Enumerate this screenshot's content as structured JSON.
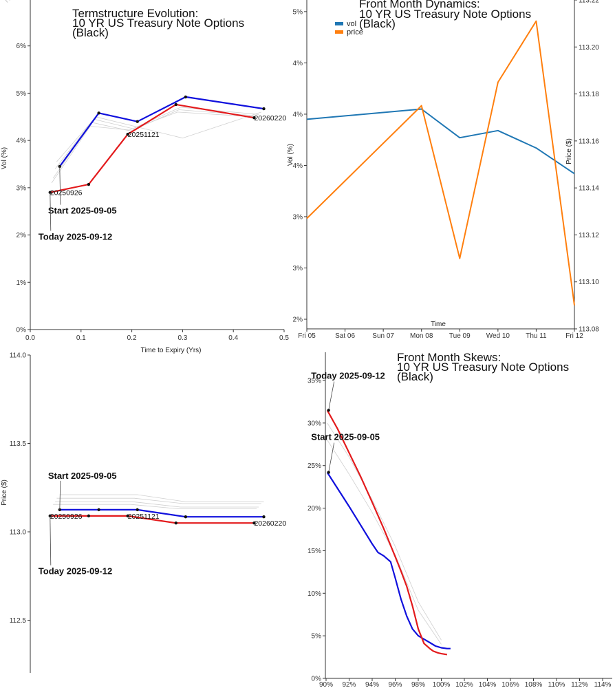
{
  "watermark": "Ter",
  "chart_data": [
    {
      "id": "termstructure",
      "type": "line",
      "title": [
        "Termstructure Evolution:",
        "10 YR US Treasury Note Options",
        "(Black)"
      ],
      "xlabel": "Time to Expiry (Yrs)",
      "ylabel": "Vol (%)",
      "xlim": [
        0,
        0.5
      ],
      "ylim": [
        0,
        7
      ],
      "xticks": [
        0.0,
        0.1,
        0.2,
        0.3,
        0.4,
        0.5
      ],
      "xtick_labels": [
        "0.0",
        "0.1",
        "0.2",
        "0.3",
        "0.4",
        "0.5"
      ],
      "yticks": [
        0,
        1,
        2,
        3,
        4,
        5,
        6
      ],
      "ytick_labels": [
        "0%",
        "1%",
        "2%",
        "3%",
        "4%",
        "5%",
        "6%"
      ],
      "series": [
        {
          "name": "Start 2025-09-05",
          "color": "#1010dd",
          "x": [
            0.058,
            0.135,
            0.211,
            0.306,
            0.46
          ],
          "y": [
            3.45,
            4.58,
            4.4,
            4.92,
            4.67
          ]
        },
        {
          "name": "Today 2025-09-12",
          "color": "#e31a1c",
          "x": [
            0.039,
            0.115,
            0.192,
            0.287,
            0.441
          ],
          "y": [
            2.9,
            3.07,
            4.13,
            4.76,
            4.48
          ]
        }
      ],
      "history": [
        {
          "x": [
            0.052,
            0.129,
            0.205,
            0.3,
            0.455
          ],
          "y": [
            3.55,
            4.5,
            4.3,
            4.05,
            4.6
          ]
        },
        {
          "x": [
            0.049,
            0.125,
            0.202,
            0.296,
            0.45
          ],
          "y": [
            3.4,
            4.45,
            4.25,
            4.7,
            4.55
          ]
        },
        {
          "x": [
            0.045,
            0.121,
            0.198,
            0.293,
            0.446
          ],
          "y": [
            3.2,
            4.38,
            4.2,
            4.65,
            4.52
          ]
        },
        {
          "x": [
            0.042,
            0.118,
            0.195,
            0.29,
            0.443
          ],
          "y": [
            3.1,
            4.3,
            4.22,
            4.6,
            4.5
          ]
        }
      ],
      "point_labels": [
        {
          "text": "20250926",
          "x": 0.039,
          "y": 2.9
        },
        {
          "text": "20251121",
          "x": 0.192,
          "y": 4.13
        },
        {
          "text": "20260220",
          "x": 0.441,
          "y": 4.48
        }
      ],
      "annotations": [
        {
          "text": "Start 2025-09-05",
          "target_x": 0.058,
          "target_y": 3.45,
          "label_x": 0.035,
          "label_y": 2.45
        },
        {
          "text": "Today 2025-09-12",
          "target_x": 0.039,
          "target_y": 2.9,
          "label_x": 0.016,
          "label_y": 1.9
        }
      ]
    },
    {
      "id": "dynamics",
      "type": "line",
      "title": [
        "Front Month Dynamics:",
        "10 YR US Treasury Note Options",
        "(Black)"
      ],
      "xlabel": "Time",
      "ylabel": "Vol (%)",
      "y2label": "Price ($)",
      "categories": [
        "Fri 05",
        "Sat 06",
        "Sun 07",
        "Mon 08",
        "Tue 09",
        "Wed 10",
        "Thu 11",
        "Fri 12"
      ],
      "ylim": [
        2.0,
        5.1
      ],
      "yticks": [
        2.0,
        2.5,
        3.0,
        3.5,
        4.0,
        4.5,
        5.0
      ],
      "ytick_labels": [
        "2%",
        "3%",
        "3%",
        "4%",
        "4%",
        "4%",
        "5%"
      ],
      "y2lim": [
        113.08,
        113.22
      ],
      "y2ticks": [
        113.08,
        113.1,
        113.12,
        113.14,
        113.16,
        113.18,
        113.2,
        113.22
      ],
      "y2tick_labels": [
        "113.08",
        "113.10",
        "113.12",
        "113.14",
        "113.16",
        "113.18",
        "113.20",
        "113.22"
      ],
      "legend": [
        "vol",
        "price"
      ],
      "series": [
        {
          "name": "vol",
          "axis": "left",
          "color": "#1f77b4",
          "x": [
            0,
            3,
            4,
            5,
            6,
            7
          ],
          "y": [
            3.95,
            4.05,
            3.77,
            3.84,
            3.67,
            3.42
          ]
        },
        {
          "name": "price",
          "axis": "right",
          "color": "#ff7f0e",
          "x": [
            0,
            3,
            4,
            5,
            6,
            7
          ],
          "y": [
            113.127,
            113.175,
            113.11,
            113.185,
            113.211,
            113.09
          ]
        }
      ]
    },
    {
      "id": "prices",
      "type": "line",
      "title": [],
      "xlabel": "",
      "ylabel": "Price ($)",
      "xlim": [
        0,
        0.5
      ],
      "ylim": [
        112.2,
        114.0
      ],
      "yticks": [
        112.5,
        113.0,
        113.5,
        114.0
      ],
      "ytick_labels": [
        "112.5",
        "113.0",
        "113.5",
        "114.0"
      ],
      "series": [
        {
          "name": "Start 2025-09-05",
          "color": "#1010dd",
          "x": [
            0.058,
            0.135,
            0.211,
            0.306,
            0.46
          ],
          "y": [
            113.125,
            113.125,
            113.125,
            113.085,
            113.085
          ]
        },
        {
          "name": "Today 2025-09-12",
          "color": "#e31a1c",
          "x": [
            0.039,
            0.115,
            0.192,
            0.287,
            0.441
          ],
          "y": [
            113.09,
            113.09,
            113.09,
            113.05,
            113.05
          ]
        }
      ],
      "history": [
        {
          "x": [
            0.058,
            0.135,
            0.211,
            0.306,
            0.46
          ],
          "y": [
            113.21,
            113.21,
            113.21,
            113.17,
            113.17
          ]
        },
        {
          "x": [
            0.052,
            0.129,
            0.205,
            0.3,
            0.455
          ],
          "y": [
            113.19,
            113.19,
            113.19,
            113.16,
            113.16
          ]
        },
        {
          "x": [
            0.049,
            0.125,
            0.202,
            0.296,
            0.45
          ],
          "y": [
            113.17,
            113.17,
            113.17,
            113.14,
            113.14
          ]
        },
        {
          "x": [
            0.045,
            0.121,
            0.198,
            0.293,
            0.446
          ],
          "y": [
            113.155,
            113.155,
            113.155,
            113.13,
            113.13
          ]
        }
      ],
      "point_labels": [
        {
          "text": "20250926",
          "x": 0.039,
          "y": 113.09
        },
        {
          "text": "20251121",
          "x": 0.192,
          "y": 113.09
        },
        {
          "text": "20260220",
          "x": 0.441,
          "y": 113.05
        }
      ],
      "annotations": [
        {
          "text": "Start 2025-09-05",
          "target_x": 0.058,
          "target_y": 113.125,
          "label_x": 0.035,
          "label_y": 113.3
        },
        {
          "text": "Today 2025-09-12",
          "target_x": 0.039,
          "target_y": 113.09,
          "label_x": 0.016,
          "label_y": 112.76
        }
      ]
    },
    {
      "id": "skews",
      "type": "line",
      "title": [
        "Front Month Skews:",
        "10 YR US Treasury Note Options",
        "(Black)"
      ],
      "xlabel": "",
      "ylabel": "",
      "xlim": [
        90,
        115
      ],
      "ylim": [
        0,
        38
      ],
      "xticks": [
        90,
        92,
        94,
        96,
        98,
        100,
        102,
        104,
        106,
        108,
        110,
        112,
        114
      ],
      "xtick_labels": [
        "90%",
        "92%",
        "94%",
        "96%",
        "98%",
        "100%",
        "102%",
        "104%",
        "106%",
        "108%",
        "110%",
        "112%",
        "114%"
      ],
      "yticks": [
        0,
        5,
        10,
        15,
        20,
        25,
        30,
        35
      ],
      "ytick_labels": [
        "0%",
        "5%",
        "10%",
        "15%",
        "20%",
        "25%",
        "30%",
        "35%"
      ],
      "series": [
        {
          "name": "Start 2025-09-05",
          "color": "#1010dd",
          "x": [
            90.1,
            91,
            92,
            93,
            94,
            94.5,
            95,
            95.6,
            96,
            96.5,
            97,
            97.5,
            98,
            98.5,
            99,
            99.5,
            100,
            100.5,
            100.8
          ],
          "y": [
            24.2,
            22.3,
            20.2,
            18.0,
            15.8,
            14.8,
            14.4,
            13.7,
            11.8,
            9.3,
            7.3,
            5.8,
            5.0,
            4.6,
            4.2,
            3.8,
            3.6,
            3.5,
            3.5
          ]
        },
        {
          "name": "Today 2025-09-12",
          "color": "#e31a1c",
          "x": [
            90.1,
            91,
            92,
            93,
            94,
            95,
            96,
            96.5,
            97,
            97.5,
            98,
            98.5,
            99,
            99.3,
            99.7,
            100,
            100.5
          ],
          "y": [
            31.5,
            29.3,
            26.5,
            23.7,
            20.7,
            17.6,
            14.3,
            12.6,
            10.8,
            8.5,
            5.8,
            4.1,
            3.5,
            3.2,
            3.0,
            2.9,
            2.8
          ]
        }
      ],
      "history": [
        {
          "x": [
            90.1,
            92,
            94,
            96,
            98,
            100
          ],
          "y": [
            30.0,
            26.0,
            21.0,
            15.5,
            9.0,
            4.5
          ]
        },
        {
          "x": [
            90.1,
            92,
            94,
            96,
            98,
            100
          ],
          "y": [
            28.0,
            24.0,
            19.5,
            14.5,
            8.0,
            4.0
          ]
        }
      ],
      "annotations": [
        {
          "text": "Today 2025-09-12",
          "target_x": 90.1,
          "target_y": 31.5,
          "label_x": 89.6,
          "label_y": 35.2
        },
        {
          "text": "Start 2025-09-05",
          "target_x": 90.1,
          "target_y": 24.2,
          "label_x": 89.6,
          "label_y": 28.0
        }
      ]
    }
  ]
}
